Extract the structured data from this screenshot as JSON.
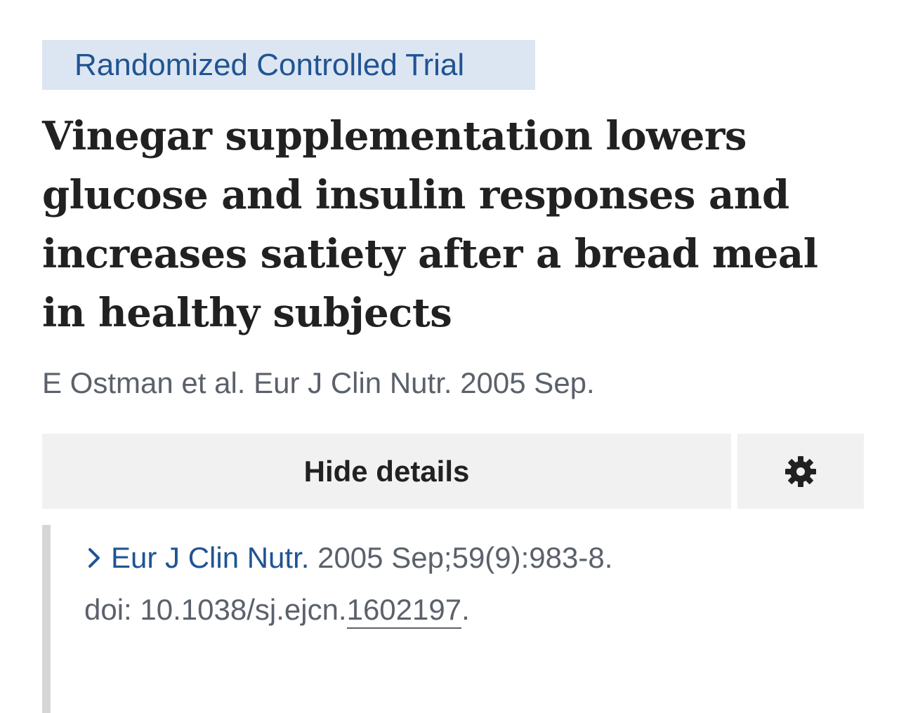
{
  "article": {
    "publication_type": "Randomized Controlled Trial",
    "title_lines": [
      "Vinegar supplementation lowers",
      "glucose and insulin responses and",
      "increases satiety after a bread meal",
      "in healthy subjects"
    ],
    "citation": "E Ostman et al. Eur J Clin Nutr. 2005 Sep."
  },
  "controls": {
    "hide_details_label": "Hide details",
    "settings_icon": "gear-icon"
  },
  "details": {
    "chevron_icon": "chevron-right-icon",
    "journal": "Eur J Clin Nutr.",
    "issue": " 2005 Sep;59(9):983-8.",
    "doi_prefix": "doi: 10.1038/sj.ejcn.",
    "doi_link": "1602197",
    "doi_suffix": "."
  },
  "colors": {
    "accent": "#205493",
    "badge_bg": "#dce6f2",
    "button_bg": "#f1f1f1",
    "muted_text": "#5b616b",
    "title_text": "#212121"
  }
}
